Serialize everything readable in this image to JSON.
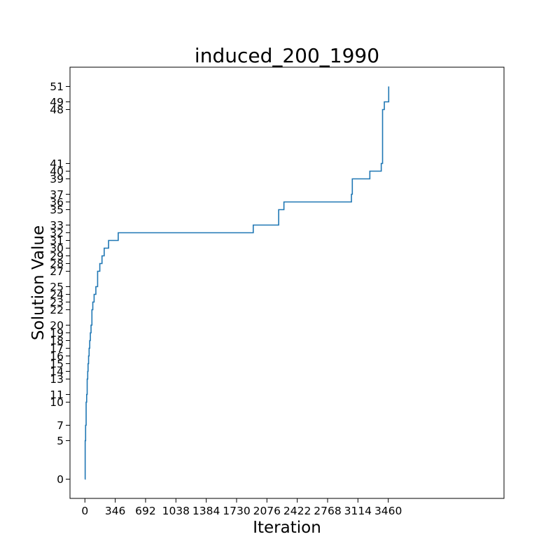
{
  "chart_data": {
    "type": "line",
    "step": true,
    "title": "induced_200_1990",
    "xlabel": "Iteration",
    "ylabel": "Solution Value",
    "xlim": [
      -170,
      4780
    ],
    "ylim": [
      -2.5,
      53.5
    ],
    "grid": false,
    "line_color": "#1f77b4",
    "xticks": [
      0,
      346,
      692,
      1038,
      1384,
      1730,
      2076,
      2422,
      2768,
      3114,
      3460
    ],
    "yticks": [
      0,
      5,
      7,
      10,
      11,
      13,
      14,
      15,
      16,
      17,
      18,
      19,
      20,
      22,
      23,
      24,
      25,
      27,
      28,
      29,
      30,
      31,
      32,
      33,
      35,
      36,
      37,
      39,
      40,
      41,
      48,
      49,
      51
    ],
    "series": [
      {
        "x": [
          0,
          3,
          8,
          14,
          20,
          26,
          32,
          36,
          42,
          48,
          55,
          62,
          70,
          80,
          90,
          105,
          125,
          145,
          170,
          195,
          220,
          270,
          380,
          1920,
          2210,
          2270,
          3040,
          3050,
          3250,
          3380,
          3395,
          3415,
          3465
        ],
        "y": [
          0,
          5,
          7,
          10,
          11,
          13,
          14,
          15,
          16,
          17,
          18,
          19,
          20,
          22,
          23,
          24,
          25,
          27,
          28,
          29,
          30,
          31,
          32,
          33,
          35,
          36,
          37,
          39,
          40,
          41,
          48,
          49,
          51
        ]
      }
    ]
  }
}
